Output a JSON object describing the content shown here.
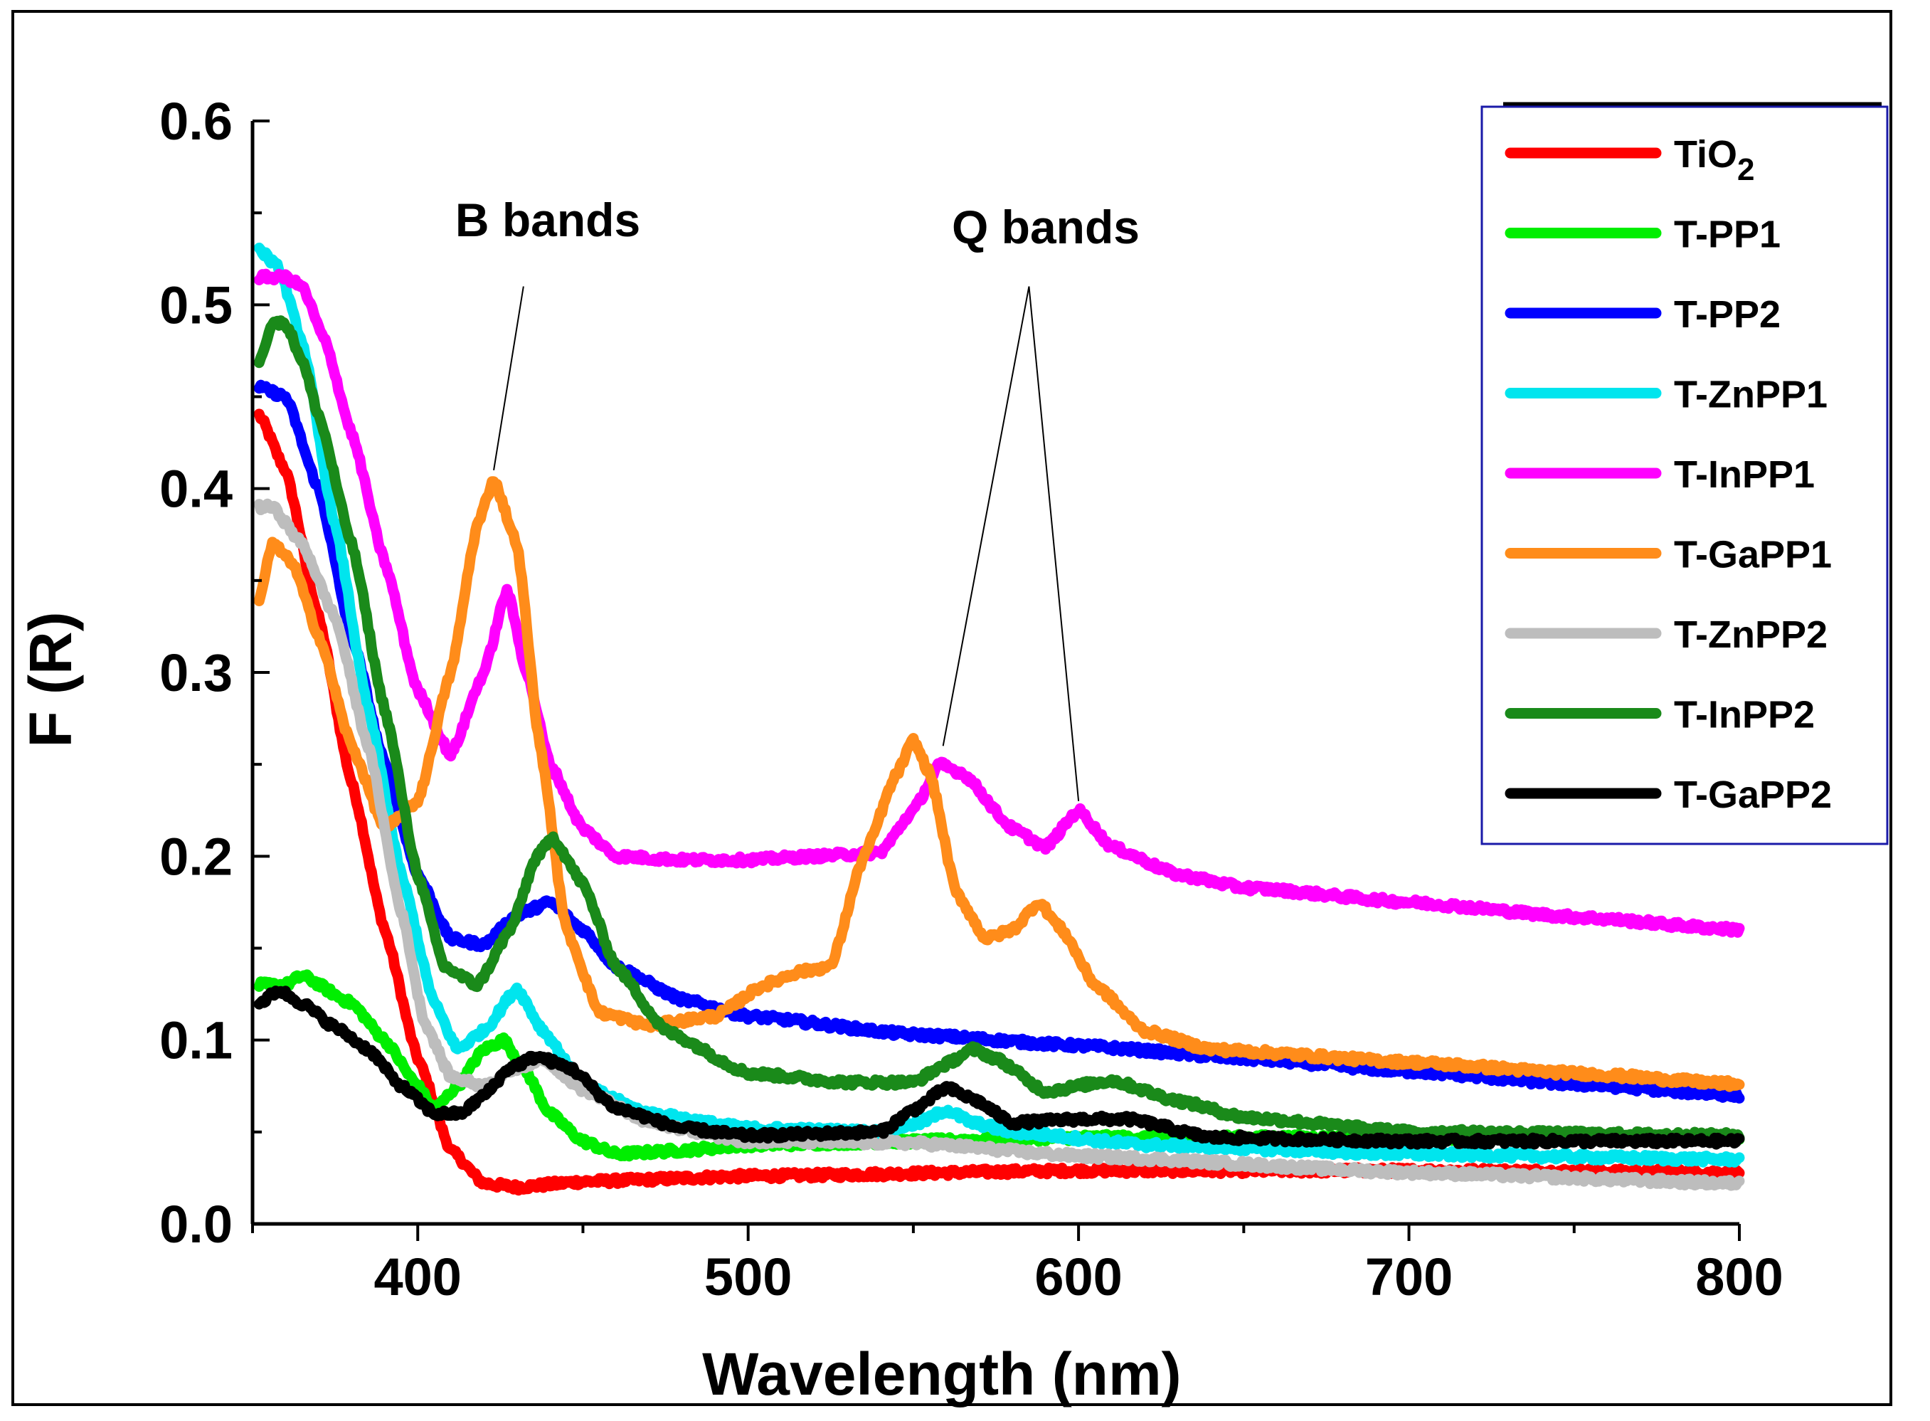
{
  "chart_data": {
    "type": "line",
    "title": "",
    "xlabel": "Wavelength (nm)",
    "ylabel": "F (R)",
    "xlim": [
      350,
      800
    ],
    "ylim": [
      0,
      0.6
    ],
    "xticks": [
      "400",
      "500",
      "600",
      "700",
      "800"
    ],
    "xtick_values": [
      400,
      500,
      600,
      700,
      800
    ],
    "yticks": [
      "0.0",
      "0.1",
      "0.2",
      "0.3",
      "0.4",
      "0.5",
      "0.6"
    ],
    "ytick_values": [
      0,
      0.1,
      0.2,
      0.3,
      0.4,
      0.5,
      0.6
    ],
    "legend_position": "top-right",
    "annotations": [
      {
        "id": "b",
        "text": "B bands",
        "apex": [
          432,
          0.51
        ],
        "targets": [
          [
            423,
            0.41
          ]
        ]
      },
      {
        "id": "q",
        "text": "Q bands",
        "apex": [
          585,
          0.51
        ],
        "targets": [
          [
            559,
            0.26
          ],
          [
            600,
            0.23
          ]
        ]
      }
    ],
    "series": [
      {
        "name": "TiO2",
        "label_main": "TiO",
        "label_sub": "2",
        "color": "#ff0000",
        "points": [
          [
            352,
            0.44
          ],
          [
            360,
            0.41
          ],
          [
            370,
            0.33
          ],
          [
            380,
            0.24
          ],
          [
            390,
            0.16
          ],
          [
            400,
            0.09
          ],
          [
            410,
            0.04
          ],
          [
            420,
            0.022
          ],
          [
            430,
            0.02
          ],
          [
            450,
            0.023
          ],
          [
            500,
            0.026
          ],
          [
            600,
            0.029
          ],
          [
            700,
            0.029
          ],
          [
            800,
            0.028
          ]
        ]
      },
      {
        "name": "T-PP1",
        "label_main": "T-PP1",
        "label_sub": "",
        "color": "#00ee00",
        "points": [
          [
            352,
            0.13
          ],
          [
            360,
            0.13
          ],
          [
            365,
            0.135
          ],
          [
            380,
            0.12
          ],
          [
            390,
            0.1
          ],
          [
            400,
            0.075
          ],
          [
            405,
            0.062
          ],
          [
            412,
            0.075
          ],
          [
            420,
            0.095
          ],
          [
            426,
            0.1
          ],
          [
            432,
            0.085
          ],
          [
            440,
            0.06
          ],
          [
            450,
            0.045
          ],
          [
            460,
            0.038
          ],
          [
            480,
            0.04
          ],
          [
            500,
            0.043
          ],
          [
            550,
            0.045
          ],
          [
            600,
            0.047
          ],
          [
            650,
            0.047
          ],
          [
            700,
            0.047
          ],
          [
            800,
            0.047
          ]
        ]
      },
      {
        "name": "T-PP2",
        "label_main": "T-PP2",
        "label_sub": "",
        "color": "#0000ff",
        "points": [
          [
            352,
            0.455
          ],
          [
            360,
            0.45
          ],
          [
            370,
            0.4
          ],
          [
            380,
            0.32
          ],
          [
            390,
            0.25
          ],
          [
            400,
            0.19
          ],
          [
            410,
            0.155
          ],
          [
            420,
            0.152
          ],
          [
            430,
            0.168
          ],
          [
            440,
            0.175
          ],
          [
            450,
            0.16
          ],
          [
            460,
            0.14
          ],
          [
            480,
            0.122
          ],
          [
            500,
            0.113
          ],
          [
            550,
            0.103
          ],
          [
            600,
            0.097
          ],
          [
            650,
            0.09
          ],
          [
            700,
            0.083
          ],
          [
            750,
            0.076
          ],
          [
            800,
            0.07
          ]
        ]
      },
      {
        "name": "T-ZnPP1",
        "label_main": "T-ZnPP1",
        "label_sub": "",
        "color": "#00e5ee",
        "points": [
          [
            352,
            0.53
          ],
          [
            358,
            0.52
          ],
          [
            365,
            0.48
          ],
          [
            375,
            0.38
          ],
          [
            385,
            0.28
          ],
          [
            395,
            0.19
          ],
          [
            405,
            0.12
          ],
          [
            412,
            0.095
          ],
          [
            420,
            0.105
          ],
          [
            430,
            0.128
          ],
          [
            438,
            0.105
          ],
          [
            450,
            0.075
          ],
          [
            470,
            0.06
          ],
          [
            500,
            0.052
          ],
          [
            540,
            0.05
          ],
          [
            552,
            0.055
          ],
          [
            560,
            0.062
          ],
          [
            568,
            0.055
          ],
          [
            580,
            0.05
          ],
          [
            620,
            0.043
          ],
          [
            700,
            0.038
          ],
          [
            800,
            0.035
          ]
        ]
      },
      {
        "name": "T-InPP1",
        "label_main": "T-InPP1",
        "label_sub": "",
        "color": "#ff00ff",
        "points": [
          [
            352,
            0.515
          ],
          [
            360,
            0.515
          ],
          [
            365,
            0.51
          ],
          [
            372,
            0.48
          ],
          [
            380,
            0.43
          ],
          [
            390,
            0.36
          ],
          [
            400,
            0.29
          ],
          [
            410,
            0.255
          ],
          [
            420,
            0.3
          ],
          [
            427,
            0.345
          ],
          [
            433,
            0.3
          ],
          [
            440,
            0.25
          ],
          [
            450,
            0.215
          ],
          [
            460,
            0.2
          ],
          [
            480,
            0.198
          ],
          [
            500,
            0.198
          ],
          [
            520,
            0.2
          ],
          [
            540,
            0.202
          ],
          [
            550,
            0.225
          ],
          [
            558,
            0.25
          ],
          [
            565,
            0.245
          ],
          [
            580,
            0.215
          ],
          [
            590,
            0.205
          ],
          [
            600,
            0.225
          ],
          [
            610,
            0.205
          ],
          [
            630,
            0.19
          ],
          [
            650,
            0.183
          ],
          [
            700,
            0.175
          ],
          [
            750,
            0.167
          ],
          [
            800,
            0.16
          ]
        ]
      },
      {
        "name": "T-GaPP1",
        "label_main": "T-GaPP1",
        "label_sub": "",
        "color": "#ff8c1a",
        "points": [
          [
            352,
            0.34
          ],
          [
            356,
            0.37
          ],
          [
            362,
            0.36
          ],
          [
            370,
            0.32
          ],
          [
            380,
            0.26
          ],
          [
            390,
            0.215
          ],
          [
            400,
            0.23
          ],
          [
            410,
            0.3
          ],
          [
            418,
            0.38
          ],
          [
            423,
            0.405
          ],
          [
            430,
            0.37
          ],
          [
            437,
            0.26
          ],
          [
            445,
            0.16
          ],
          [
            455,
            0.115
          ],
          [
            470,
            0.108
          ],
          [
            490,
            0.113
          ],
          [
            505,
            0.13
          ],
          [
            515,
            0.137
          ],
          [
            525,
            0.14
          ],
          [
            535,
            0.2
          ],
          [
            545,
            0.245
          ],
          [
            550,
            0.263
          ],
          [
            555,
            0.245
          ],
          [
            563,
            0.18
          ],
          [
            572,
            0.155
          ],
          [
            580,
            0.16
          ],
          [
            588,
            0.175
          ],
          [
            595,
            0.16
          ],
          [
            605,
            0.13
          ],
          [
            620,
            0.105
          ],
          [
            640,
            0.095
          ],
          [
            700,
            0.088
          ],
          [
            750,
            0.082
          ],
          [
            800,
            0.076
          ]
        ]
      },
      {
        "name": "T-ZnPP2",
        "label_main": "T-ZnPP2",
        "label_sub": "",
        "color": "#bdbdbd",
        "points": [
          [
            352,
            0.39
          ],
          [
            356,
            0.39
          ],
          [
            365,
            0.37
          ],
          [
            375,
            0.33
          ],
          [
            385,
            0.26
          ],
          [
            395,
            0.17
          ],
          [
            402,
            0.11
          ],
          [
            410,
            0.08
          ],
          [
            420,
            0.075
          ],
          [
            430,
            0.085
          ],
          [
            438,
            0.09
          ],
          [
            450,
            0.073
          ],
          [
            470,
            0.055
          ],
          [
            500,
            0.045
          ],
          [
            550,
            0.044
          ],
          [
            600,
            0.037
          ],
          [
            700,
            0.028
          ],
          [
            800,
            0.022
          ]
        ]
      },
      {
        "name": "T-InPP2",
        "label_main": "T-InPP2",
        "label_sub": "",
        "color": "#1a8a1a",
        "points": [
          [
            352,
            0.47
          ],
          [
            356,
            0.49
          ],
          [
            360,
            0.49
          ],
          [
            365,
            0.47
          ],
          [
            370,
            0.44
          ],
          [
            380,
            0.37
          ],
          [
            390,
            0.28
          ],
          [
            400,
            0.19
          ],
          [
            408,
            0.14
          ],
          [
            418,
            0.13
          ],
          [
            428,
            0.16
          ],
          [
            436,
            0.2
          ],
          [
            441,
            0.21
          ],
          [
            450,
            0.185
          ],
          [
            460,
            0.14
          ],
          [
            475,
            0.105
          ],
          [
            500,
            0.082
          ],
          [
            530,
            0.077
          ],
          [
            550,
            0.077
          ],
          [
            560,
            0.087
          ],
          [
            568,
            0.095
          ],
          [
            575,
            0.09
          ],
          [
            590,
            0.072
          ],
          [
            610,
            0.078
          ],
          [
            630,
            0.067
          ],
          [
            650,
            0.058
          ],
          [
            700,
            0.05
          ],
          [
            800,
            0.048
          ]
        ]
      },
      {
        "name": "T-GaPP2",
        "label_main": "T-GaPP2",
        "label_sub": "",
        "color": "#000000",
        "points": [
          [
            352,
            0.12
          ],
          [
            358,
            0.127
          ],
          [
            365,
            0.12
          ],
          [
            375,
            0.107
          ],
          [
            385,
            0.095
          ],
          [
            395,
            0.075
          ],
          [
            405,
            0.06
          ],
          [
            413,
            0.06
          ],
          [
            420,
            0.07
          ],
          [
            428,
            0.085
          ],
          [
            436,
            0.091
          ],
          [
            446,
            0.085
          ],
          [
            460,
            0.063
          ],
          [
            480,
            0.052
          ],
          [
            500,
            0.048
          ],
          [
            540,
            0.05
          ],
          [
            550,
            0.062
          ],
          [
            560,
            0.074
          ],
          [
            568,
            0.068
          ],
          [
            580,
            0.055
          ],
          [
            600,
            0.057
          ],
          [
            615,
            0.057
          ],
          [
            640,
            0.047
          ],
          [
            700,
            0.045
          ],
          [
            800,
            0.045
          ]
        ]
      }
    ]
  }
}
